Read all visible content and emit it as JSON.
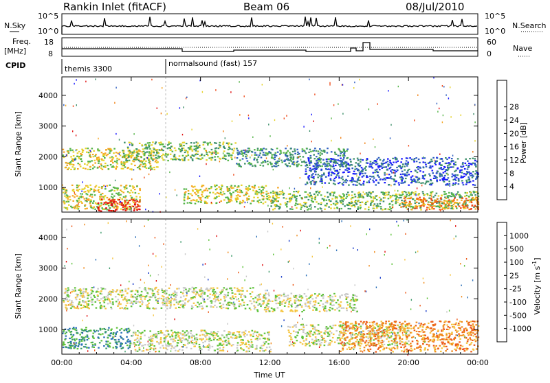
{
  "header": {
    "title": "Rankin Inlet (fitACF)",
    "beam": "Beam 06",
    "date": "08/Jul/2010"
  },
  "panels": {
    "nsky_label": "N.Sky",
    "nsearch_label": "N.Search",
    "nsky_ticks": [
      "10^5",
      "10^0"
    ],
    "nsearch_ticks": [
      "10^5",
      "10^0"
    ],
    "freq_label_1": "Freq.",
    "freq_label_2": "[MHz]",
    "freq_ticks": [
      "18",
      "8"
    ],
    "nave_label": "Nave",
    "nave_ticks": [
      "60",
      "0"
    ],
    "cpid_label": "CPID",
    "cpid_entries": [
      "themis 3300",
      "normalsound (fast) 157"
    ]
  },
  "chart_data": [
    {
      "type": "heatmap",
      "name": "power",
      "ylabel": "Slant Range [km]",
      "xlabel": "",
      "x_ticks": [
        "00:00",
        "04:00",
        "08:00",
        "12:00",
        "16:00",
        "20:00",
        "00:00"
      ],
      "y_ticks": [
        "1000",
        "2000",
        "3000",
        "4000"
      ],
      "ylim": [
        200,
        4600
      ],
      "colorbar": {
        "label": "Power [dB]",
        "ticks": [
          "4",
          "8",
          "12",
          "16",
          "20",
          "24",
          "28"
        ],
        "colors": [
          "#1a1aff",
          "#2f5fc0",
          "#3d8f6a",
          "#55b548",
          "#e6d22a",
          "#f5a623",
          "#f07f10",
          "#ee4a1a",
          "#e01010"
        ]
      },
      "echo_bands": [
        {
          "t0": 0.0,
          "t1": 5.5,
          "r0": 1600,
          "r1": 2300,
          "level": 4
        },
        {
          "t0": 3.5,
          "t1": 10.0,
          "r0": 1900,
          "r1": 2500,
          "level": 3
        },
        {
          "t0": 10.0,
          "t1": 16.5,
          "r0": 1700,
          "r1": 2300,
          "level": 2
        },
        {
          "t0": 14.0,
          "t1": 24.0,
          "r0": 1100,
          "r1": 2000,
          "level": 1
        },
        {
          "t0": 0.0,
          "t1": 4.5,
          "r0": 300,
          "r1": 1100,
          "level": 4
        },
        {
          "t0": 2.0,
          "t1": 4.5,
          "r0": 250,
          "r1": 650,
          "level": 8
        },
        {
          "t0": 7.0,
          "t1": 12.5,
          "r0": 500,
          "r1": 1100,
          "level": 4
        },
        {
          "t0": 12.0,
          "t1": 24.0,
          "r0": 300,
          "r1": 900,
          "level": 3
        },
        {
          "t0": 19.5,
          "t1": 24.0,
          "r0": 300,
          "r1": 700,
          "level": 6
        }
      ]
    },
    {
      "type": "heatmap",
      "name": "velocity",
      "ylabel": "Slant Range [km]",
      "xlabel": "Time UT",
      "x_ticks": [
        "00:00",
        "04:00",
        "08:00",
        "12:00",
        "16:00",
        "20:00",
        "00:00"
      ],
      "y_ticks": [
        "1000",
        "2000",
        "3000",
        "4000"
      ],
      "ylim": [
        200,
        4600
      ],
      "colorbar": {
        "label": "Velocity [m s^-1]",
        "ticks": [
          "1000",
          "500",
          "100",
          "25",
          "-25",
          "-100",
          "-500",
          "-1000"
        ],
        "colors": [
          "#1438c8",
          "#2a6fb8",
          "#3c9a6a",
          "#5ec23a",
          "#c8c8c8",
          "#f5c542",
          "#f08a1c",
          "#ec5a18",
          "#e01010"
        ]
      },
      "echo_bands": [
        {
          "t0": 0.0,
          "t1": 11.0,
          "r0": 1700,
          "r1": 2400,
          "level": 4
        },
        {
          "t0": 11.0,
          "t1": 17.0,
          "r0": 1600,
          "r1": 2200,
          "level": 4
        },
        {
          "t0": 0.0,
          "t1": 4.0,
          "r0": 400,
          "r1": 1100,
          "level": 2
        },
        {
          "t0": 4.0,
          "t1": 12.0,
          "r0": 300,
          "r1": 1000,
          "level": 4
        },
        {
          "t0": 13.0,
          "t1": 20.0,
          "r0": 500,
          "r1": 1200,
          "level": 4
        },
        {
          "t0": 16.0,
          "t1": 24.0,
          "r0": 300,
          "r1": 1300,
          "level": 6
        }
      ]
    }
  ]
}
